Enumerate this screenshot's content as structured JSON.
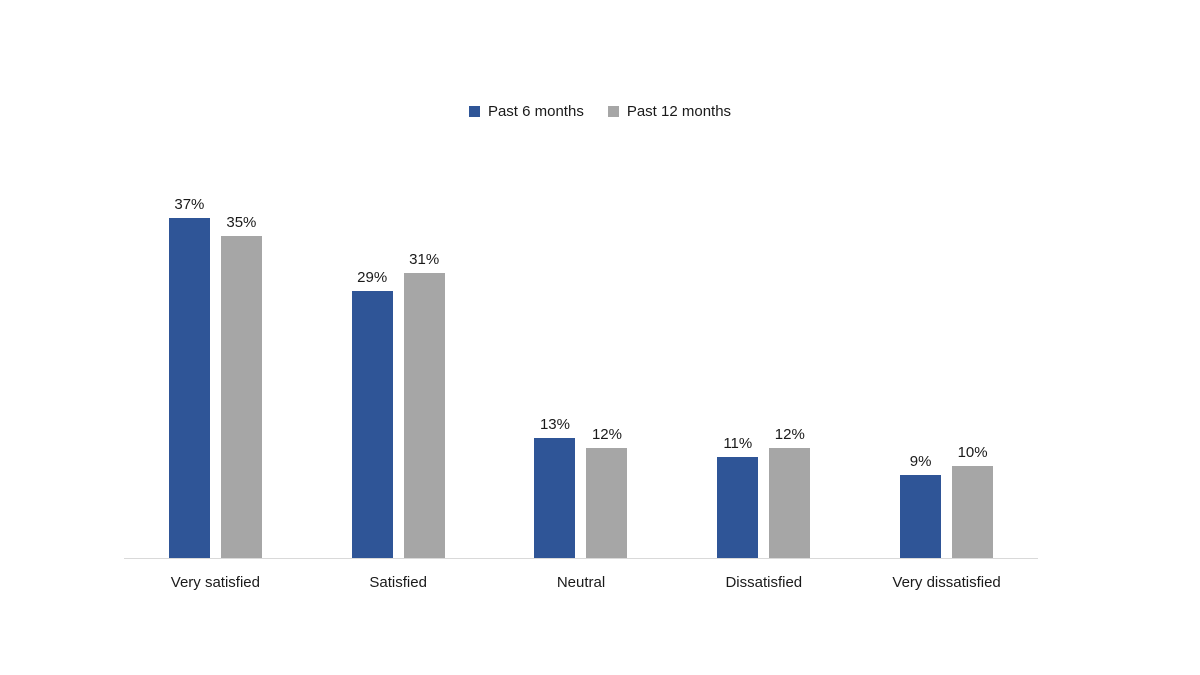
{
  "chart_data": {
    "type": "bar",
    "title": "",
    "categories": [
      "Very satisfied",
      "Satisfied",
      "Neutral",
      "Dissatisfied",
      "Very dissatisfied"
    ],
    "series": [
      {
        "name": "Past 6 months",
        "color": "#2F5597",
        "values": [
          37,
          29,
          13,
          11,
          9
        ],
        "labels": [
          "37%",
          "29%",
          "13%",
          "11%",
          "9%"
        ]
      },
      {
        "name": "Past 12 months",
        "color": "#A6A6A6",
        "values": [
          35,
          31,
          12,
          12,
          10
        ],
        "labels": [
          "35%",
          "31%",
          "12%",
          "12%",
          "10%"
        ]
      }
    ],
    "value_format": "percent",
    "data_labels": true,
    "legend_position": "top",
    "xlabel": "",
    "ylabel": "",
    "ylim": [
      0,
      40
    ],
    "grid": false,
    "axis_line_color": "#D9D9D9",
    "text_color": "#1A1A1A",
    "background_color": "#FFFFFF"
  }
}
